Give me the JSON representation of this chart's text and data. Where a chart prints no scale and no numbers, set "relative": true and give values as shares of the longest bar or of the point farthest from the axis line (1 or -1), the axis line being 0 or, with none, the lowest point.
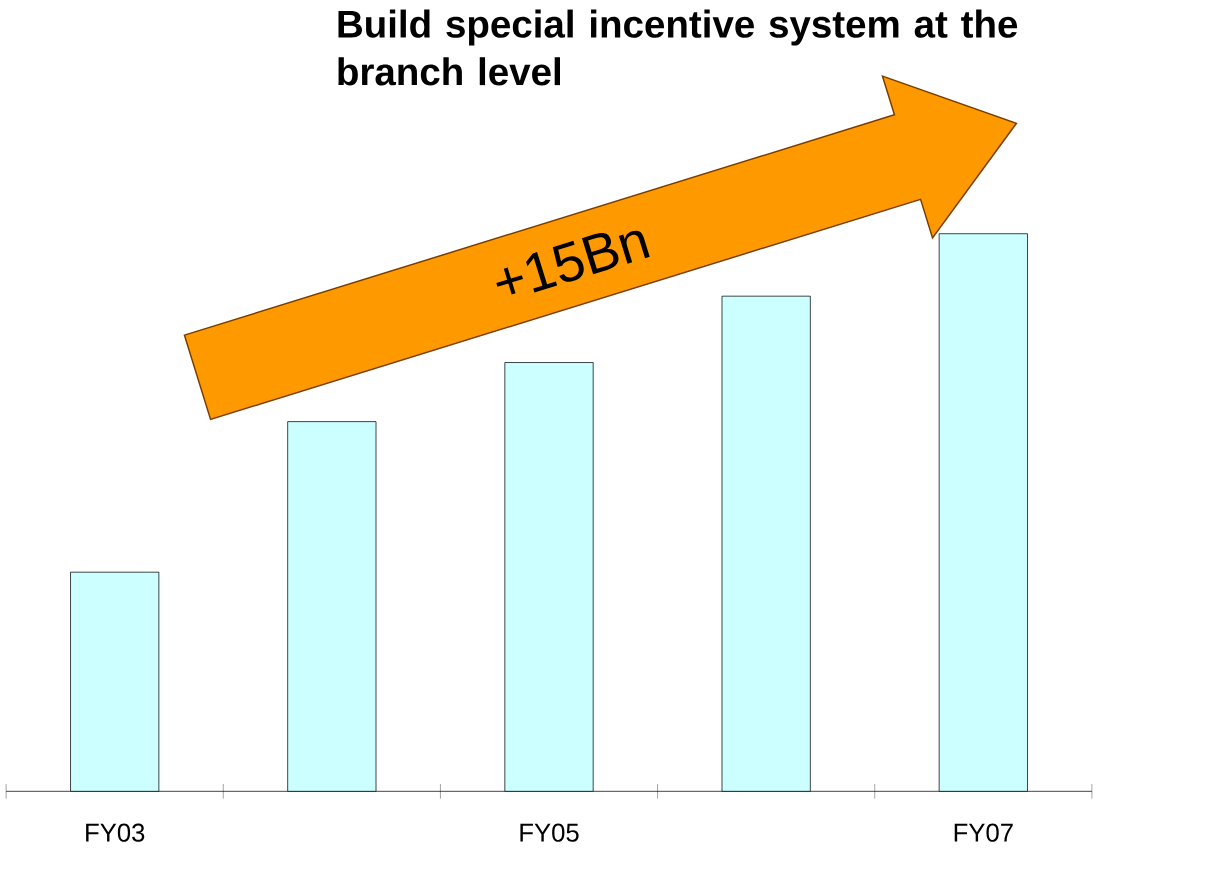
{
  "chart_data": {
    "type": "bar",
    "title": "Build special incentive system at the branch level",
    "categories": [
      "FY03",
      null,
      "FY05",
      null,
      "FY07"
    ],
    "values": [
      0.393,
      0.663,
      0.769,
      0.888,
      1.0
    ],
    "color": "#ccffff",
    "relative": true,
    "annotations": [
      "+15Bn"
    ]
  }
}
